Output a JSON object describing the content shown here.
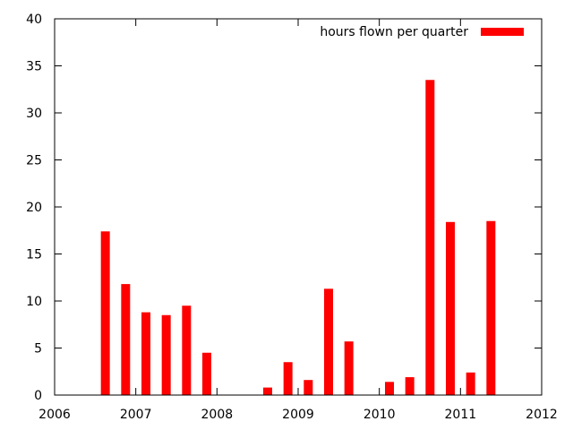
{
  "chart_data": {
    "type": "bar",
    "title": "",
    "xlabel": "",
    "ylabel": "",
    "xlim": [
      2006,
      2012
    ],
    "ylim": [
      0,
      40
    ],
    "xticks": [
      "2006",
      "2007",
      "2008",
      "2009",
      "2010",
      "2011",
      "2012"
    ],
    "yticks": [
      "0",
      "5",
      "10",
      "15",
      "20",
      "25",
      "30",
      "35",
      "40"
    ],
    "grid": false,
    "legend": "top-right",
    "series": [
      {
        "name": "hours flown per quarter",
        "color": "#ff0000",
        "points": [
          {
            "x": 2006.625,
            "y": 17.4
          },
          {
            "x": 2006.875,
            "y": 11.8
          },
          {
            "x": 2007.125,
            "y": 8.8
          },
          {
            "x": 2007.375,
            "y": 8.5
          },
          {
            "x": 2007.625,
            "y": 9.5
          },
          {
            "x": 2007.875,
            "y": 4.5
          },
          {
            "x": 2008.625,
            "y": 0.8
          },
          {
            "x": 2008.875,
            "y": 3.5
          },
          {
            "x": 2009.125,
            "y": 1.6
          },
          {
            "x": 2009.375,
            "y": 11.3
          },
          {
            "x": 2009.625,
            "y": 5.7
          },
          {
            "x": 2010.125,
            "y": 1.4
          },
          {
            "x": 2010.375,
            "y": 1.9
          },
          {
            "x": 2010.625,
            "y": 33.5
          },
          {
            "x": 2010.875,
            "y": 18.4
          },
          {
            "x": 2011.125,
            "y": 2.4
          },
          {
            "x": 2011.375,
            "y": 18.5
          }
        ]
      }
    ]
  }
}
